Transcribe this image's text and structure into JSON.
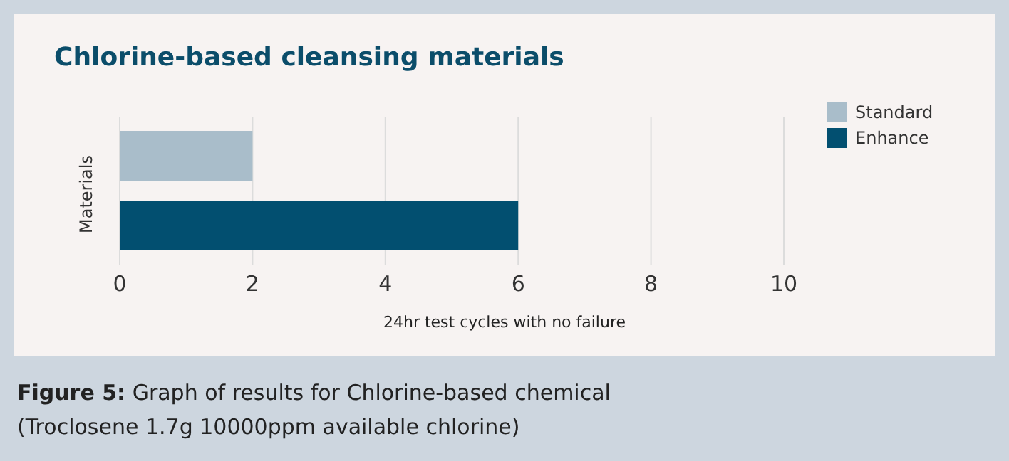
{
  "chart_data": {
    "type": "bar",
    "orientation": "horizontal",
    "title": "Chlorine-based cleansing materials",
    "xlabel": "24hr test cycles with no failure",
    "ylabel": "Materials",
    "categories": [
      null
    ],
    "series": [
      {
        "name": "Standard",
        "color": "#a9bdca",
        "values": [
          2
        ]
      },
      {
        "name": "Enhance",
        "color": "#024f70",
        "values": [
          6
        ]
      }
    ],
    "xlim": [
      0,
      10
    ],
    "xticks": [
      0,
      2,
      4,
      6,
      8,
      10
    ],
    "grid": "x",
    "legend": "top right",
    "annotations": [
      "Figure 5: Graph of results for Chlorine-based chemical",
      "(Troclosene 1.7g 10000ppm available chlorine)"
    ]
  }
}
